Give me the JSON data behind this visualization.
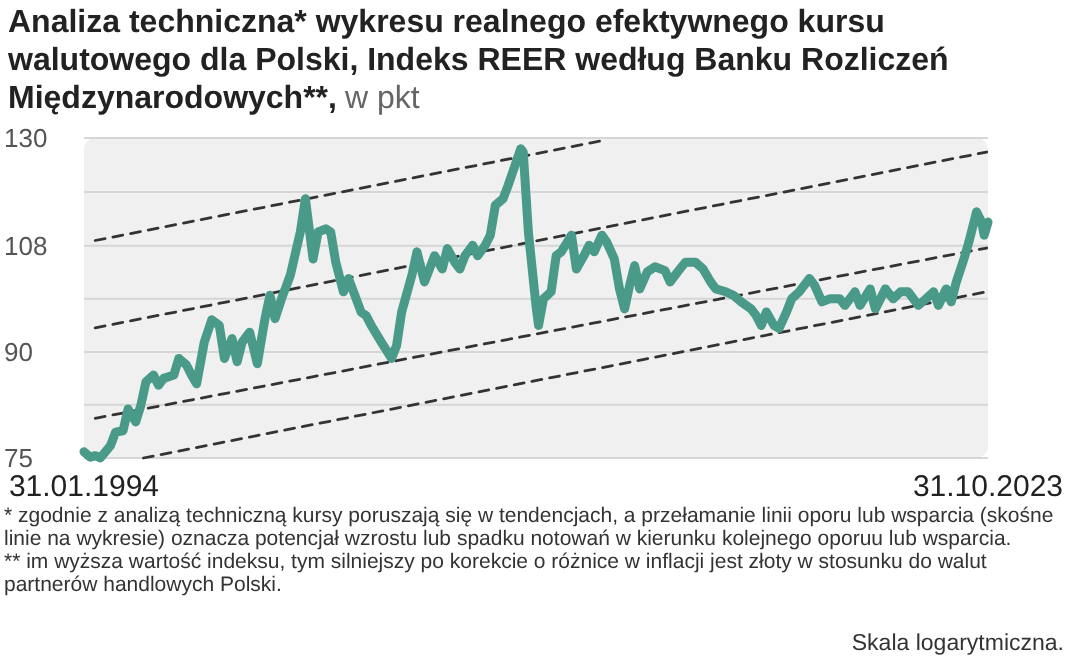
{
  "chart_data": {
    "type": "line",
    "title": "Analiza techniczna* wykresu realnego efektywnego kursu walutowego dla Polski, Indeks REER według Banku Rozliczeń Międzynarodowych**,",
    "subtitle": "w pkt",
    "annotations": [
      "* zgodnie z analizą techniczną kursy poruszają się w tendencjach, a przełamanie linii oporu lub wsparcia (skośne linie na wykresie) oznacza potencjał wzrostu lub spadku notowań w kierunku kolejnego oporuu lub wsparcia.",
      "** im wyższa wartość indeksu, tym silniejszy po korekcie o różnice w inflacji jest złoty w stosunku do walut partnerów handlowych Polski.",
      "Skala logarytmiczna."
    ],
    "log": true,
    "grid": "y",
    "marker": "none",
    "xlim": [
      "1994-01-31",
      "2023-10-31"
    ],
    "xticks": [
      {
        "value": "1994-01-31",
        "label": "31.01.1994"
      },
      {
        "value": "2023-10-31",
        "label": "31.10.2023"
      }
    ],
    "ylim": [
      75,
      130
    ],
    "yticks": [
      75,
      {
        "value": 82.2,
        "label": null
      },
      90,
      {
        "value": 98.6,
        "label": null
      },
      108,
      {
        "value": 118.5,
        "label": null
      },
      130
    ],
    "series": [
      {
        "color": "#4a9a8a",
        "line_style": "solid",
        "x": [
          "1994-01-31",
          "1994-04",
          "1994-06",
          "1994-08",
          "1994-10",
          "1994-12",
          "1995-02",
          "1995-05",
          "1995-07",
          "1995-10",
          "1995-12",
          "1996-02",
          "1996-05",
          "1996-07",
          "1996-09",
          "1997-01",
          "1997-03",
          "1997-06",
          "1997-08",
          "1997-10",
          "1998-01",
          "1998-04",
          "1998-07",
          "1998-09",
          "1998-12",
          "1999-02",
          "1999-04",
          "1999-07",
          "1999-10",
          "2000-01",
          "2000-03",
          "2000-05",
          "2000-08",
          "2000-09",
          "2000-11",
          "2001-03",
          "2001-05",
          "2001-08",
          "2001-10",
          "2002-01",
          "2002-03",
          "2002-05",
          "2002-08",
          "2002-10",
          "2002-12",
          "2003-03",
          "2003-05",
          "2003-07",
          "2003-11",
          "2004-03",
          "2004-05",
          "2004-07",
          "2004-11",
          "2005-01",
          "2005-04",
          "2005-06",
          "2005-08",
          "2005-11",
          "2006-01",
          "2006-04",
          "2006-06",
          "2006-08",
          "2006-11",
          "2007-01",
          "2007-04",
          "2007-06",
          "2007-08",
          "2007-11",
          "2008-01",
          "2008-06",
          "2008-07",
          "2008-09",
          "2008-12",
          "2009-01",
          "2009-03",
          "2009-06",
          "2009-08",
          "2009-10",
          "2010-02",
          "2010-04",
          "2010-07",
          "2010-09",
          "2010-11",
          "2011-02",
          "2011-04",
          "2011-07",
          "2011-09",
          "2011-11",
          "2012-01",
          "2012-03",
          "2012-05",
          "2012-08",
          "2012-11",
          "2013-03",
          "2013-05",
          "2013-08",
          "2013-11",
          "2014-03",
          "2014-06",
          "2014-09",
          "2014-11",
          "2015-03",
          "2015-06",
          "2015-09",
          "2016-01",
          "2016-03",
          "2016-05",
          "2016-07",
          "2016-10",
          "2016-12",
          "2017-03",
          "2017-05",
          "2017-08",
          "2017-12",
          "2018-02",
          "2018-05",
          "2018-08",
          "2018-12",
          "2019-02",
          "2019-06",
          "2019-08",
          "2019-12",
          "2020-02",
          "2020-06",
          "2020-09",
          "2020-12",
          "2021-03",
          "2021-07",
          "2021-10",
          "2022-01",
          "2022-03",
          "2022-06",
          "2022-08",
          "2022-10",
          "2023-01",
          "2023-03",
          "2023-06",
          "2023-08",
          "2023-09",
          "2023-10-31"
        ],
        "values": [
          75.8,
          75.1,
          75.3,
          75.0,
          75.8,
          76.6,
          78.4,
          78.6,
          81.6,
          79.8,
          82.1,
          85.5,
          86.5,
          85.0,
          86.0,
          86.5,
          89.0,
          88.0,
          86.5,
          85.2,
          91.5,
          95.1,
          94.2,
          89.0,
          92.1,
          88.5,
          91.5,
          93.1,
          88.2,
          95.3,
          99.2,
          95.3,
          99.2,
          100.3,
          102.7,
          110.6,
          117.1,
          105.6,
          110.6,
          111.2,
          110.6,
          105.0,
          99.8,
          102.1,
          99.8,
          96.4,
          95.8,
          94.2,
          91.5,
          89.0,
          91.0,
          96.4,
          102.7,
          106.9,
          101.5,
          103.8,
          106.2,
          103.8,
          107.5,
          105.0,
          103.8,
          106.2,
          108.1,
          106.2,
          108.1,
          110.0,
          115.8,
          117.1,
          119.8,
          127.6,
          126.9,
          110.6,
          97.5,
          94.2,
          98.6,
          99.8,
          106.2,
          106.9,
          110.0,
          103.8,
          106.2,
          108.1,
          106.9,
          110.0,
          108.7,
          105.6,
          100.3,
          96.9,
          100.9,
          104.4,
          100.3,
          103.3,
          104.2,
          103.5,
          101.5,
          103.3,
          105.0,
          105.0,
          103.8,
          101.5,
          100.3,
          99.8,
          99.2,
          98.1,
          96.9,
          95.8,
          94.2,
          96.4,
          94.2,
          93.7,
          96.4,
          98.6,
          99.8,
          102.1,
          100.9,
          98.1,
          98.6,
          98.6,
          97.5,
          99.8,
          97.5,
          100.3,
          96.9,
          100.3,
          98.6,
          99.8,
          99.8,
          97.5,
          98.6,
          99.8,
          97.5,
          100.3,
          98.1,
          101.5,
          105.6,
          108.7,
          114.5,
          112.5,
          110.0,
          112.5
        ]
      },
      {
        "color": "#333333",
        "line_style": "dashed",
        "x": [
          "1994-06",
          "2011-03"
        ],
        "values": [
          109,
          129.5
        ]
      },
      {
        "color": "#333333",
        "line_style": "dashed",
        "x": [
          "1994-06",
          "2023-10"
        ],
        "values": [
          93.8,
          126.9
        ]
      },
      {
        "color": "#333333",
        "line_style": "dashed",
        "x": [
          "1994-06",
          "2023-10"
        ],
        "values": [
          80.3,
          107.6
        ]
      },
      {
        "color": "#333333",
        "line_style": "dashed",
        "x": [
          "1996-01",
          "2023-10"
        ],
        "values": [
          75,
          99.8
        ]
      }
    ]
  }
}
